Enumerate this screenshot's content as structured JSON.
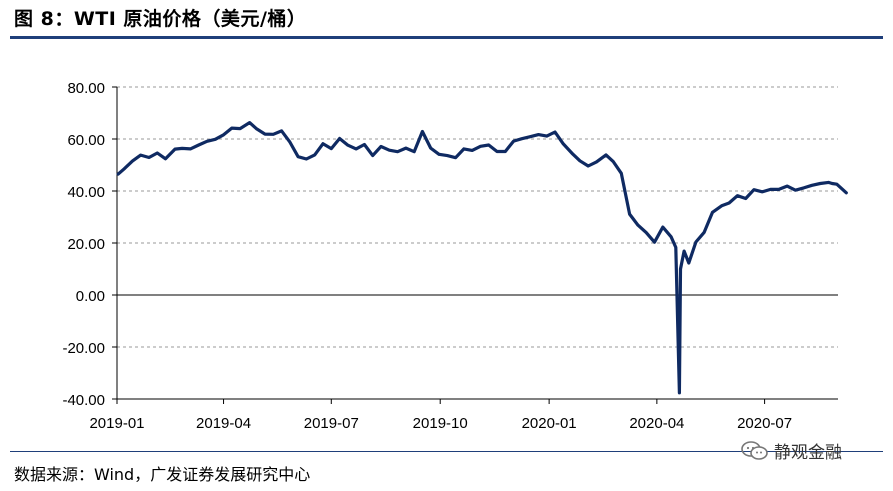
{
  "figure": {
    "title": "图 8：WTI 原油价格（美元/桶）",
    "source": "数据来源：Wind，广发证券发展研究中心",
    "watermark": "静观金融",
    "watermark_icon": "wechat-icon"
  },
  "colors": {
    "line": "#0f2a62",
    "rule": "#1f3f7a",
    "grid": "#9a9a9a"
  },
  "chart_data": {
    "type": "line",
    "title": "WTI 原油价格（美元/桶）",
    "xlabel": "",
    "ylabel": "",
    "ylim": [
      -40,
      80
    ],
    "yticks": [
      "80.00",
      "60.00",
      "40.00",
      "20.00",
      "0.00",
      "-20.00",
      "-40.00"
    ],
    "ytick_values": [
      80,
      60,
      40,
      20,
      0,
      -20,
      -40
    ],
    "xticks": [
      "2019-01",
      "2019-04",
      "2019-07",
      "2019-10",
      "2020-01",
      "2020-04",
      "2020-07"
    ],
    "xtick_dates": [
      "2019-01-01",
      "2019-04-01",
      "2019-07-01",
      "2019-10-01",
      "2020-01-01",
      "2020-04-01",
      "2020-07-01"
    ],
    "xlim": [
      "2019-01-01",
      "2020-09-01"
    ],
    "grid": "horizontal-dashed",
    "series": [
      {
        "name": "",
        "points": [
          [
            "2019-01-02",
            46.5
          ],
          [
            "2019-01-07",
            48.5
          ],
          [
            "2019-01-14",
            51.5
          ],
          [
            "2019-01-21",
            53.8
          ],
          [
            "2019-01-28",
            52.9
          ],
          [
            "2019-02-04",
            54.6
          ],
          [
            "2019-02-11",
            52.4
          ],
          [
            "2019-02-19",
            56.1
          ],
          [
            "2019-02-25",
            56.4
          ],
          [
            "2019-03-04",
            56.2
          ],
          [
            "2019-03-11",
            57.7
          ],
          [
            "2019-03-18",
            59.1
          ],
          [
            "2019-03-25",
            59.9
          ],
          [
            "2019-04-01",
            61.6
          ],
          [
            "2019-04-08",
            64.2
          ],
          [
            "2019-04-15",
            64.0
          ],
          [
            "2019-04-23",
            66.3
          ],
          [
            "2019-04-29",
            63.9
          ],
          [
            "2019-05-06",
            61.9
          ],
          [
            "2019-05-13",
            61.8
          ],
          [
            "2019-05-20",
            63.1
          ],
          [
            "2019-05-27",
            58.8
          ],
          [
            "2019-06-03",
            53.2
          ],
          [
            "2019-06-10",
            52.3
          ],
          [
            "2019-06-17",
            53.9
          ],
          [
            "2019-06-24",
            58.2
          ],
          [
            "2019-07-01",
            56.3
          ],
          [
            "2019-07-08",
            60.2
          ],
          [
            "2019-07-15",
            57.6
          ],
          [
            "2019-07-22",
            56.2
          ],
          [
            "2019-07-29",
            57.9
          ],
          [
            "2019-08-05",
            53.6
          ],
          [
            "2019-08-12",
            57.1
          ],
          [
            "2019-08-19",
            55.7
          ],
          [
            "2019-08-26",
            55.1
          ],
          [
            "2019-09-02",
            56.5
          ],
          [
            "2019-09-09",
            55.1
          ],
          [
            "2019-09-16",
            62.9
          ],
          [
            "2019-09-23",
            56.5
          ],
          [
            "2019-09-30",
            54.1
          ],
          [
            "2019-10-07",
            53.6
          ],
          [
            "2019-10-14",
            52.8
          ],
          [
            "2019-10-21",
            56.2
          ],
          [
            "2019-10-28",
            55.6
          ],
          [
            "2019-11-04",
            57.2
          ],
          [
            "2019-11-11",
            57.7
          ],
          [
            "2019-11-18",
            55.2
          ],
          [
            "2019-11-25",
            55.2
          ],
          [
            "2019-12-02",
            59.2
          ],
          [
            "2019-12-09",
            60.1
          ],
          [
            "2019-12-16",
            60.9
          ],
          [
            "2019-12-23",
            61.7
          ],
          [
            "2019-12-30",
            61.1
          ],
          [
            "2020-01-06",
            62.7
          ],
          [
            "2020-01-13",
            58.1
          ],
          [
            "2020-01-21",
            54.2
          ],
          [
            "2020-01-27",
            51.6
          ],
          [
            "2020-02-03",
            49.6
          ],
          [
            "2020-02-10",
            51.2
          ],
          [
            "2020-02-18",
            53.9
          ],
          [
            "2020-02-24",
            51.4
          ],
          [
            "2020-03-02",
            46.8
          ],
          [
            "2020-03-09",
            31.1
          ],
          [
            "2020-03-16",
            26.9
          ],
          [
            "2020-03-23",
            24.0
          ],
          [
            "2020-03-30",
            20.3
          ],
          [
            "2020-04-06",
            26.1
          ],
          [
            "2020-04-13",
            22.4
          ],
          [
            "2020-04-17",
            18.3
          ],
          [
            "2020-04-20",
            -37.6
          ],
          [
            "2020-04-21",
            10.0
          ],
          [
            "2020-04-24",
            16.9
          ],
          [
            "2020-04-28",
            12.3
          ],
          [
            "2020-05-04",
            20.4
          ],
          [
            "2020-05-11",
            24.1
          ],
          [
            "2020-05-18",
            31.8
          ],
          [
            "2020-05-26",
            34.4
          ],
          [
            "2020-06-01",
            35.4
          ],
          [
            "2020-06-08",
            38.2
          ],
          [
            "2020-06-15",
            37.1
          ],
          [
            "2020-06-22",
            40.5
          ],
          [
            "2020-06-29",
            39.7
          ],
          [
            "2020-07-06",
            40.6
          ],
          [
            "2020-07-13",
            40.6
          ],
          [
            "2020-07-20",
            41.9
          ],
          [
            "2020-07-27",
            40.3
          ],
          [
            "2020-08-03",
            41.2
          ],
          [
            "2020-08-10",
            42.2
          ],
          [
            "2020-08-17",
            42.9
          ],
          [
            "2020-08-24",
            43.3
          ],
          [
            "2020-08-27",
            42.9
          ],
          [
            "2020-08-31",
            42.6
          ],
          [
            "2020-09-03",
            41.4
          ],
          [
            "2020-09-08",
            39.3
          ]
        ]
      }
    ]
  }
}
